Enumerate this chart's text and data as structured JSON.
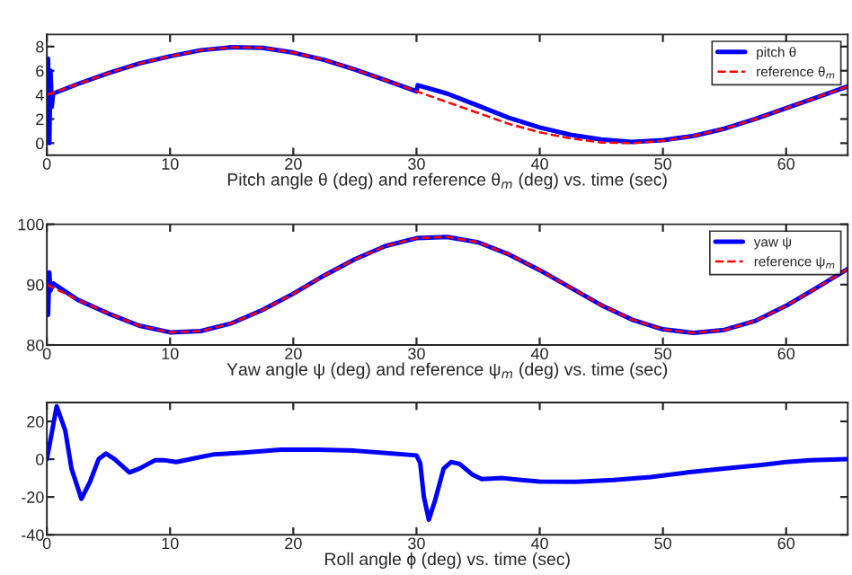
{
  "chart_data": [
    {
      "type": "line",
      "xlabel": "Pitch angle θ (deg) and reference θ$_{m}$ (deg) vs. time (sec)",
      "xlim": [
        0,
        65
      ],
      "ylim": [
        -1,
        9
      ],
      "xticks": [
        0,
        10,
        20,
        30,
        40,
        50,
        60
      ],
      "yticks": [
        0,
        2,
        4,
        6,
        8
      ],
      "legend": "top right",
      "grid": false,
      "series": [
        {
          "name": "pitch θ",
          "color": "#0000ff",
          "line_style": "solid",
          "x": [
            0,
            0.1,
            0.2,
            0.3,
            0.4,
            0.5,
            2.5,
            5,
            7.5,
            10,
            12.5,
            15,
            17.5,
            20,
            22.5,
            25,
            27.5,
            30,
            30.1,
            32.5,
            35,
            37.5,
            40,
            42.5,
            45,
            47.5,
            50,
            52.5,
            55,
            57.5,
            60,
            62.5,
            65
          ],
          "values": [
            4.0,
            7.0,
            0.0,
            6.0,
            3.0,
            4.1,
            4.9,
            5.8,
            6.6,
            7.2,
            7.7,
            7.95,
            7.9,
            7.5,
            6.9,
            6.1,
            5.2,
            4.3,
            4.8,
            4.1,
            3.1,
            2.1,
            1.3,
            0.7,
            0.3,
            0.1,
            0.25,
            0.6,
            1.2,
            2.0,
            2.9,
            3.8,
            4.7
          ]
        },
        {
          "name": "reference θ$_{m}$",
          "color": "#ff0000",
          "line_style": "dashed",
          "x": [
            0,
            2.5,
            5,
            7.5,
            10,
            12.5,
            15,
            17.5,
            20,
            22.5,
            25,
            27.5,
            30,
            32.5,
            35,
            37.5,
            40,
            42.5,
            45,
            47.5,
            50,
            52.5,
            55,
            57.5,
            60,
            62.5,
            65
          ],
          "values": [
            4.0,
            4.9,
            5.8,
            6.6,
            7.2,
            7.7,
            7.95,
            7.9,
            7.5,
            6.9,
            6.1,
            5.2,
            4.3,
            3.4,
            2.5,
            1.6,
            0.9,
            0.4,
            0.05,
            0.0,
            0.2,
            0.6,
            1.2,
            2.0,
            2.9,
            3.8,
            4.7
          ]
        }
      ]
    },
    {
      "type": "line",
      "xlabel": "Yaw angle ψ (deg) and reference ψ$_{m}$ (deg) vs. time (sec)",
      "xlim": [
        0,
        65
      ],
      "ylim": [
        80,
        100
      ],
      "xticks": [
        0,
        10,
        20,
        30,
        40,
        50,
        60
      ],
      "yticks": [
        80,
        90,
        100
      ],
      "legend": "top right",
      "grid": false,
      "series": [
        {
          "name": "yaw ψ",
          "color": "#0000ff",
          "line_style": "solid",
          "x": [
            0,
            0.1,
            0.2,
            0.3,
            0.5,
            2.5,
            5,
            7.5,
            10,
            12.5,
            15,
            17.5,
            20,
            22.5,
            25,
            27.5,
            30,
            32.5,
            35,
            37.5,
            40,
            42.5,
            45,
            47.5,
            50,
            52.5,
            55,
            57.5,
            60,
            62.5,
            65
          ],
          "values": [
            91,
            85,
            92,
            89,
            90.2,
            87.5,
            85.2,
            83.2,
            82.1,
            82.3,
            83.6,
            85.8,
            88.5,
            91.5,
            94.2,
            96.4,
            97.7,
            97.9,
            97.0,
            95.0,
            92.4,
            89.5,
            86.6,
            84.2,
            82.6,
            82.0,
            82.5,
            84.0,
            86.5,
            89.5,
            92.6
          ]
        },
        {
          "name": "reference ψ$_{m}$",
          "color": "#ff0000",
          "line_style": "dashed",
          "x": [
            0,
            2.5,
            5,
            7.5,
            10,
            12.5,
            15,
            17.5,
            20,
            22.5,
            25,
            27.5,
            30,
            32.5,
            35,
            37.5,
            40,
            42.5,
            45,
            47.5,
            50,
            52.5,
            55,
            57.5,
            60,
            62.5,
            65
          ],
          "values": [
            90,
            87.5,
            85.2,
            83.2,
            82.1,
            82.3,
            83.6,
            85.8,
            88.5,
            91.5,
            94.2,
            96.4,
            97.7,
            97.9,
            97.0,
            95.0,
            92.4,
            89.5,
            86.6,
            84.2,
            82.6,
            82.0,
            82.5,
            84.0,
            86.5,
            89.5,
            92.6
          ]
        }
      ]
    },
    {
      "type": "line",
      "xlabel": "Roll angle ϕ (deg) vs. time (sec)",
      "xlim": [
        0,
        65
      ],
      "ylim": [
        -40,
        30
      ],
      "xticks": [
        0,
        10,
        20,
        30,
        40,
        50,
        60
      ],
      "yticks": [
        -40,
        -20,
        0,
        20
      ],
      "grid": false,
      "series": [
        {
          "color": "#0000ff",
          "line_style": "solid",
          "x": [
            0,
            0.8,
            1.5,
            2,
            2.8,
            3.5,
            4.2,
            4.8,
            5.5,
            6.7,
            7.5,
            8.8,
            9.5,
            10.5,
            12,
            13.5,
            16,
            19,
            22,
            25,
            28,
            30,
            30.3,
            30.6,
            31.0,
            31.5,
            32.2,
            32.8,
            33.5,
            34.5,
            35.3,
            37,
            38.5,
            40,
            43,
            46,
            49,
            52,
            55,
            58,
            60,
            62,
            65
          ],
          "values": [
            0,
            28,
            15,
            -5,
            -21,
            -12,
            0,
            3,
            0,
            -7,
            -5,
            -0.5,
            -0.5,
            -1.5,
            0.5,
            2.5,
            3.5,
            5,
            5,
            4.5,
            3,
            2,
            -2,
            -20,
            -32,
            -22,
            -5,
            -1.5,
            -2.5,
            -8,
            -10.5,
            -10,
            -11,
            -11.8,
            -12,
            -11,
            -9.5,
            -7,
            -5,
            -3,
            -1.5,
            -0.5,
            0
          ]
        }
      ]
    }
  ]
}
